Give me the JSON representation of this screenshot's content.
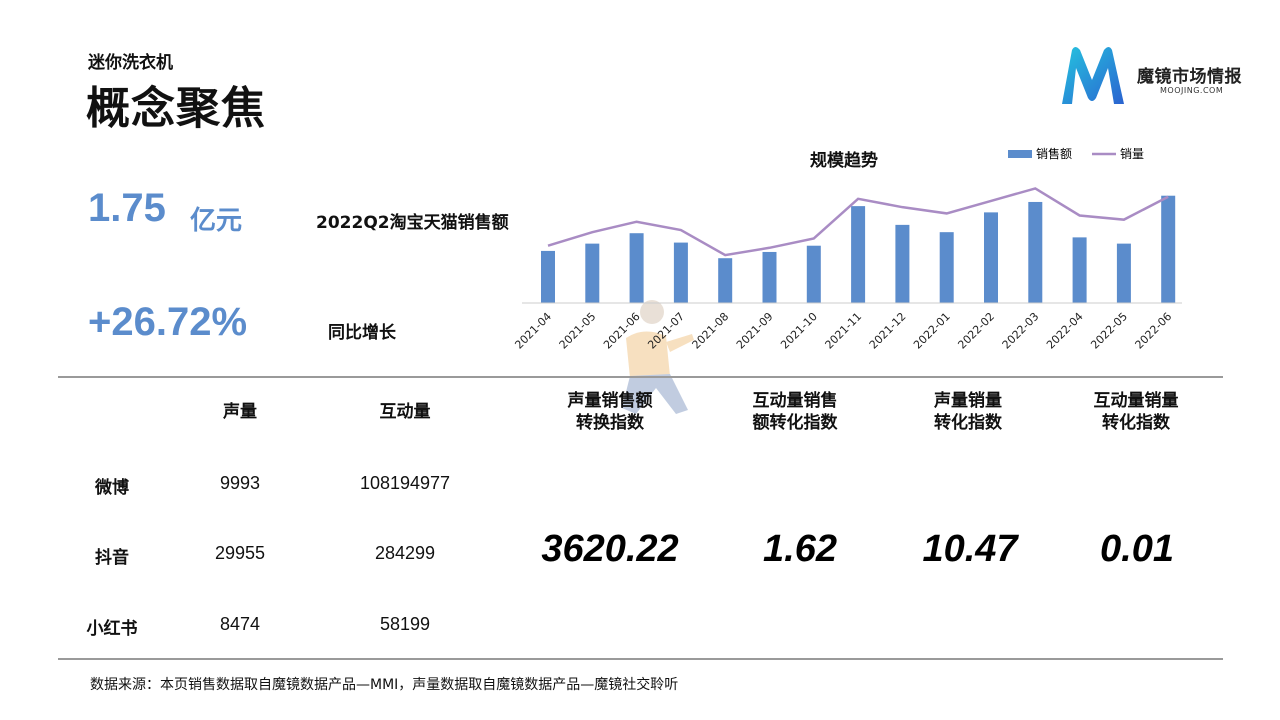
{
  "header": {
    "subtitle": "迷你洗衣机",
    "title": "概念聚焦"
  },
  "brand": {
    "name": "魔镜市场情报",
    "domain": "MOOJING.COM",
    "colors": [
      "#1fb6d9",
      "#2a6fd6"
    ]
  },
  "summary": {
    "sales_value": "1.75",
    "sales_unit": "亿元",
    "sales_label": "2022Q2淘宝天猫销售额",
    "growth_value": "+26.72%",
    "growth_label": "同比增长"
  },
  "chart_data": {
    "type": "bar",
    "title": "规模趋势",
    "categories": [
      "2021-04",
      "2021-05",
      "2021-06",
      "2021-07",
      "2021-08",
      "2021-09",
      "2021-10",
      "2021-11",
      "2021-12",
      "2022-01",
      "2022-02",
      "2022-03",
      "2022-04",
      "2022-05",
      "2022-06"
    ],
    "series": [
      {
        "name": "销售额",
        "kind": "bar",
        "color": "#5b8ccc",
        "values": [
          50,
          57,
          67,
          58,
          43,
          49,
          55,
          93,
          75,
          68,
          87,
          97,
          63,
          57,
          103
        ]
      },
      {
        "name": "销量",
        "kind": "line",
        "color": "#a98cc4",
        "values": [
          55,
          68,
          78,
          70,
          46,
          53,
          62,
          100,
          92,
          86,
          98,
          110,
          84,
          80,
          102
        ]
      }
    ],
    "legend_position": "top-right",
    "grid": false,
    "y_axis_shown": false
  },
  "table": {
    "columns": [
      "声量",
      "互动量"
    ],
    "rows": [
      {
        "label": "微博",
        "voice": "9993",
        "interaction": "108194977"
      },
      {
        "label": "抖音",
        "voice": "29955",
        "interaction": "284299"
      },
      {
        "label": "小红书",
        "voice": "8474",
        "interaction": "58199"
      }
    ]
  },
  "metrics": [
    {
      "line1": "声量销售额",
      "line2": "转换指数",
      "value": "3620.22"
    },
    {
      "line1": "互动量销售",
      "line2": "额转化指数",
      "value": "1.62"
    },
    {
      "line1": "声量销量",
      "line2": "转化指数",
      "value": "10.47"
    },
    {
      "line1": "互动量销量",
      "line2": "转化指数",
      "value": "0.01"
    }
  ],
  "footer": {
    "source": "数据来源：本页销售数据取自魔镜数据产品—MMI，声量数据取自魔镜数据产品—魔镜社交聆听"
  }
}
